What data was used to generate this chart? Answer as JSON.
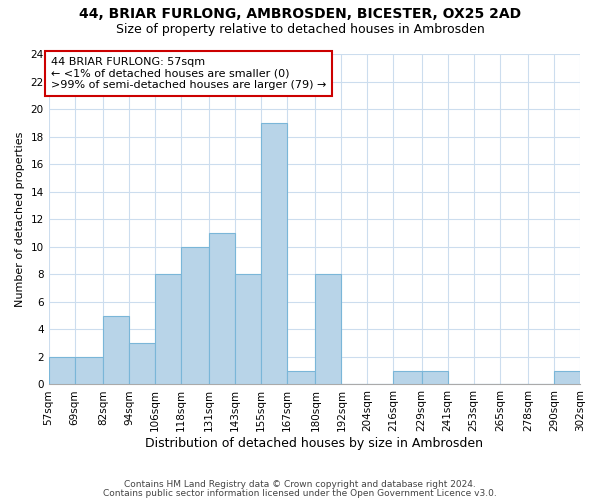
{
  "title": "44, BRIAR FURLONG, AMBROSDEN, BICESTER, OX25 2AD",
  "subtitle": "Size of property relative to detached houses in Ambrosden",
  "xlabel": "Distribution of detached houses by size in Ambrosden",
  "ylabel": "Number of detached properties",
  "bins": [
    57,
    69,
    82,
    94,
    106,
    118,
    131,
    143,
    155,
    167,
    180,
    192,
    204,
    216,
    229,
    241,
    253,
    265,
    278,
    290,
    302
  ],
  "counts": [
    2,
    2,
    5,
    3,
    8,
    10,
    11,
    8,
    19,
    1,
    8,
    0,
    0,
    1,
    1,
    0,
    0,
    0,
    0,
    1
  ],
  "bar_color": "#b8d4e8",
  "bar_edge_color": "#7ab6d8",
  "annotation_line1": "44 BRIAR FURLONG: 57sqm",
  "annotation_line2": "← <1% of detached houses are smaller (0)",
  "annotation_line3": ">99% of semi-detached houses are larger (79) →",
  "annotation_box_edge_color": "#cc0000",
  "ylim": [
    0,
    24
  ],
  "tick_labels": [
    "57sqm",
    "69sqm",
    "82sqm",
    "94sqm",
    "106sqm",
    "118sqm",
    "131sqm",
    "143sqm",
    "155sqm",
    "167sqm",
    "180sqm",
    "192sqm",
    "204sqm",
    "216sqm",
    "229sqm",
    "241sqm",
    "253sqm",
    "265sqm",
    "278sqm",
    "290sqm",
    "302sqm"
  ],
  "footer_line1": "Contains HM Land Registry data © Crown copyright and database right 2024.",
  "footer_line2": "Contains public sector information licensed under the Open Government Licence v3.0.",
  "background_color": "#ffffff",
  "grid_color": "#ccddee",
  "title_fontsize": 10,
  "subtitle_fontsize": 9,
  "xlabel_fontsize": 9,
  "ylabel_fontsize": 8,
  "tick_fontsize": 7.5,
  "footer_fontsize": 6.5,
  "ann_fontsize": 8
}
